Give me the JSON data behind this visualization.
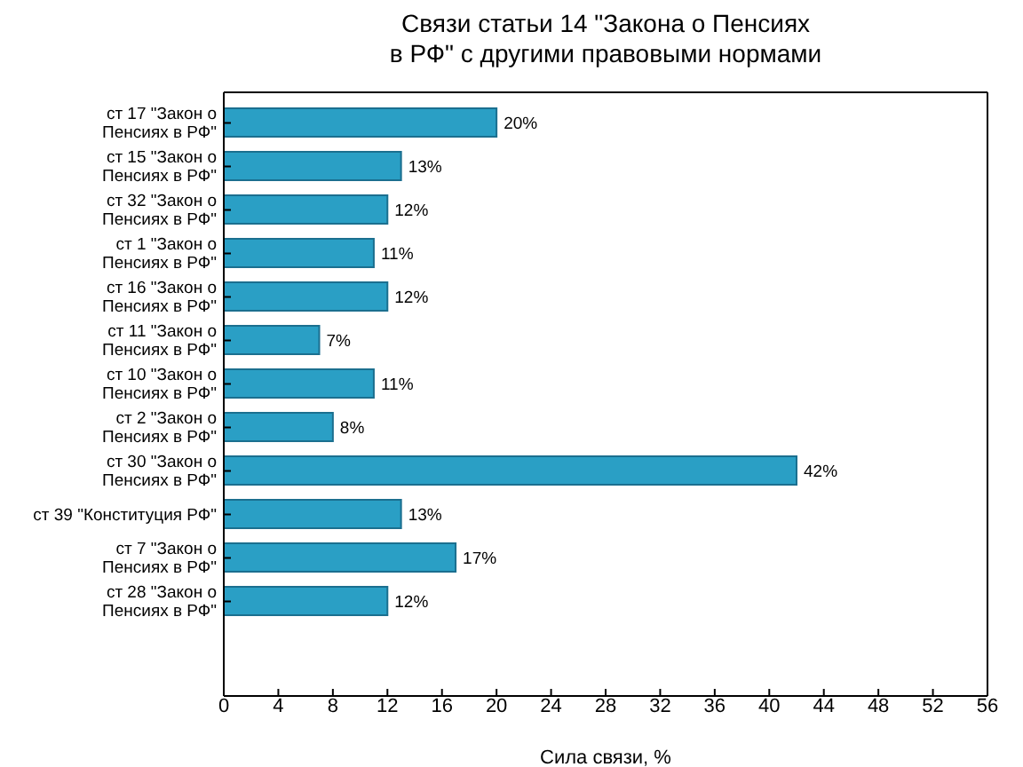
{
  "chart_data": {
    "type": "bar",
    "orientation": "horizontal",
    "title": "Связи статьи 14 \"Закона о Пенсиях\nв РФ\" с другими правовыми нормами",
    "xlabel": "Сила связи, %",
    "categories": [
      "ст 17 \"Закон о\nПенсиях в РФ\"",
      "ст 15 \"Закон о\nПенсиях в РФ\"",
      "ст 32 \"Закон о\nПенсиях в РФ\"",
      "ст 1 \"Закон о\nПенсиях в РФ\"",
      "ст 16 \"Закон о\nПенсиях в РФ\"",
      "ст 11 \"Закон о\nПенсиях в РФ\"",
      "ст 10 \"Закон о\nПенсиях в РФ\"",
      "ст 2 \"Закон о\nПенсиях в РФ\"",
      "ст 30 \"Закон о\nПенсиях в РФ\"",
      "ст 39 \"Конституция РФ\"",
      "ст 7 \"Закон о\nПенсиях в РФ\"",
      "ст 28 \"Закон о\nПенсиях в РФ\""
    ],
    "values": [
      20,
      13,
      12,
      11,
      12,
      7,
      11,
      8,
      42,
      13,
      17,
      12
    ],
    "value_labels": [
      "20%",
      "13%",
      "12%",
      "11%",
      "12%",
      "7%",
      "11%",
      "8%",
      "42%",
      "13%",
      "17%",
      "12%"
    ],
    "color": "#2a9fc5",
    "xlim": [
      0,
      56
    ],
    "xticks": [
      0,
      4,
      8,
      12,
      16,
      20,
      24,
      28,
      32,
      36,
      40,
      44,
      48,
      52,
      56
    ]
  }
}
